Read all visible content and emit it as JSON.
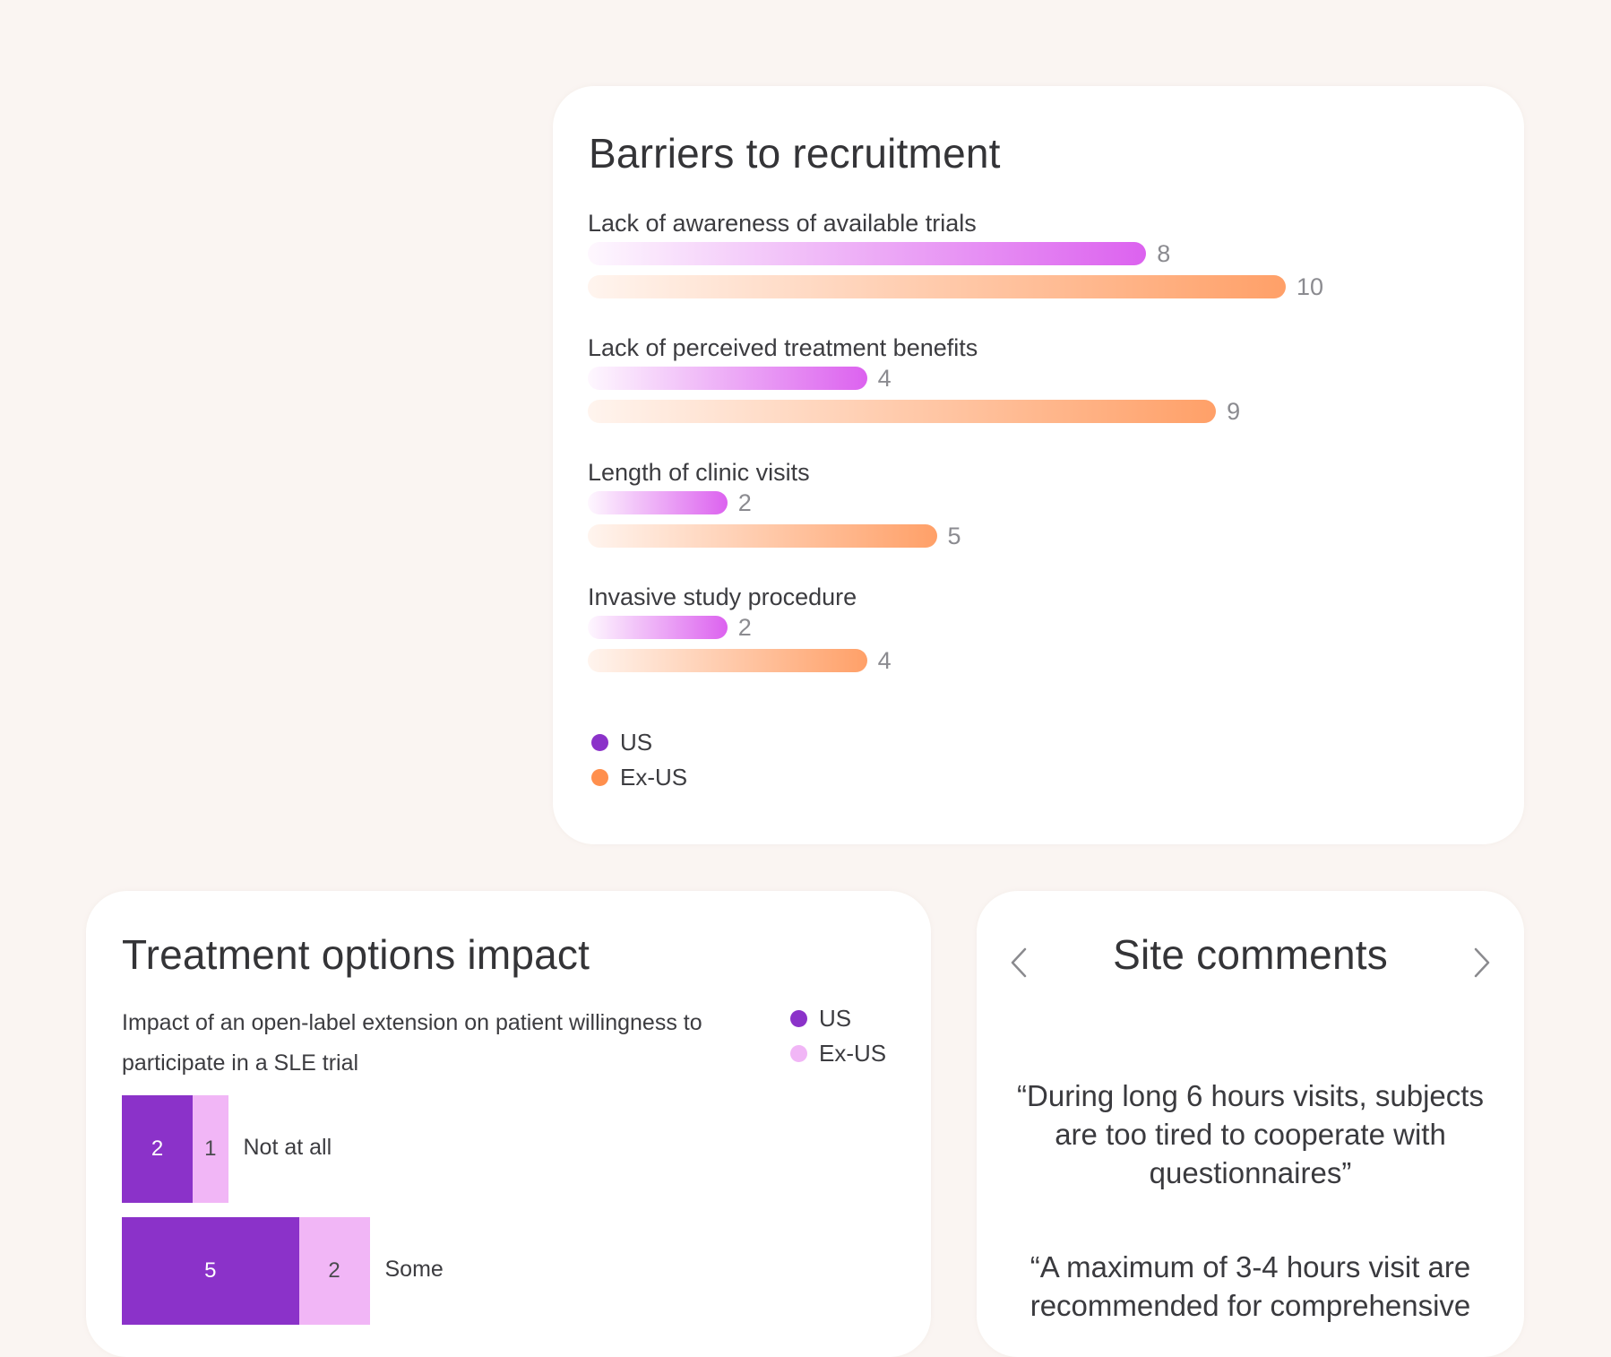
{
  "barriers": {
    "title": "Barriers to recruitment",
    "legend": [
      {
        "label": "US",
        "color": "#8b32c9"
      },
      {
        "label": "Ex-US",
        "color": "#ff8f4d"
      }
    ]
  },
  "treatment": {
    "title": "Treatment options impact",
    "subtitle": "Impact of an open-label extension on patient willingness to participate in a SLE trial",
    "legend": [
      {
        "label": "US",
        "color": "#8b32c9"
      },
      {
        "label": "Ex-US",
        "color": "#f1b6f6"
      }
    ]
  },
  "comments": {
    "title": "Site comments",
    "quotes": [
      "“During long 6 hours visits, subjects are too tired to cooperate with questionnaires”",
      "“A maximum of 3-4 hours visit are recommended for comprehensive"
    ]
  },
  "chart_data": [
    {
      "type": "bar",
      "orientation": "horizontal",
      "title": "Barriers to recruitment",
      "categories": [
        "Lack of awareness of available trials",
        "Lack of perceived treatment benefits",
        "Length of clinic visits",
        "Invasive study procedure"
      ],
      "series": [
        {
          "name": "US",
          "values": [
            8,
            4,
            2,
            2
          ],
          "color": "#dc62ef"
        },
        {
          "name": "Ex-US",
          "values": [
            10,
            9,
            5,
            4
          ],
          "color": "#ffa068"
        }
      ],
      "xlim": [
        0,
        10
      ],
      "grid": false,
      "legend": "bottom-left"
    },
    {
      "type": "bar",
      "orientation": "horizontal",
      "stacked": true,
      "title": "Treatment options impact",
      "categories": [
        "Not at all",
        "Some"
      ],
      "series": [
        {
          "name": "US",
          "values": [
            2,
            5
          ],
          "color": "#8b32c9"
        },
        {
          "name": "Ex-US",
          "values": [
            1,
            2
          ],
          "color": "#f1b6f6"
        }
      ],
      "grid": false,
      "legend": "top-right"
    }
  ]
}
